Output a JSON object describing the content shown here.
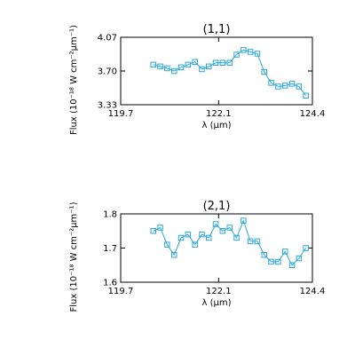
{
  "chart_data": [
    {
      "type": "line",
      "title": "(1,1)",
      "xlabel": "λ (μm)",
      "ylabel": "Flux (10⁻¹⁸ W cm⁻²μm⁻¹)",
      "xlim": [
        119.7,
        124.4
      ],
      "ylim": [
        3.33,
        4.07
      ],
      "xticks": [
        "119.7",
        "122.1",
        "124.4"
      ],
      "yticks": [
        "3.33",
        "3.70",
        "4.07"
      ],
      "marker": "square",
      "color": "#2aa6d8",
      "x": [
        120.5,
        120.67,
        120.84,
        121.01,
        121.18,
        121.35,
        121.52,
        121.69,
        121.86,
        122.03,
        122.2,
        122.37,
        122.54,
        122.71,
        122.88,
        123.05,
        123.22,
        123.39,
        123.56,
        123.73,
        123.9,
        124.07,
        124.24
      ],
      "y": [
        3.77,
        3.75,
        3.73,
        3.7,
        3.74,
        3.77,
        3.8,
        3.72,
        3.75,
        3.79,
        3.79,
        3.79,
        3.88,
        3.93,
        3.91,
        3.89,
        3.69,
        3.57,
        3.53,
        3.54,
        3.56,
        3.53,
        3.43
      ]
    },
    {
      "type": "line",
      "title": "(2,1)",
      "xlabel": "λ (μm)",
      "ylabel": "Flux (10⁻¹⁸ W cm⁻²μm⁻¹)",
      "xlim": [
        119.7,
        124.4
      ],
      "ylim": [
        1.6,
        1.8
      ],
      "xticks": [
        "119.7",
        "122.1",
        "124.4"
      ],
      "yticks": [
        "1.6",
        "1.7",
        "1.8"
      ],
      "marker": "square",
      "color": "#2aa6d8",
      "x": [
        120.5,
        120.67,
        120.84,
        121.01,
        121.18,
        121.35,
        121.52,
        121.69,
        121.86,
        122.03,
        122.2,
        122.37,
        122.54,
        122.71,
        122.88,
        123.05,
        123.22,
        123.39,
        123.56,
        123.73,
        123.9,
        124.07,
        124.24
      ],
      "y": [
        1.75,
        1.76,
        1.71,
        1.68,
        1.73,
        1.74,
        1.71,
        1.74,
        1.73,
        1.77,
        1.75,
        1.76,
        1.73,
        1.78,
        1.72,
        1.72,
        1.68,
        1.66,
        1.66,
        1.69,
        1.65,
        1.67,
        1.7
      ]
    }
  ]
}
